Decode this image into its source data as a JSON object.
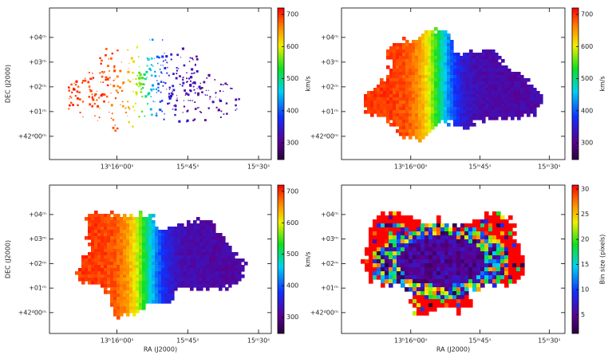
{
  "chart_data": [
    {
      "type": "velocity-map",
      "ylabel": "DEC (J2000)",
      "colorbar_label": "km/s",
      "xlim": [
        74.3,
        27.3
      ],
      "ylim": [
        -0.94,
        5.19
      ],
      "clim": [
        248,
        720
      ],
      "xticks": [
        {
          "value": 60,
          "label": "13ʰ16ᵐ00ˢ"
        },
        {
          "value": 45,
          "label": "15ᵐ45ˢ"
        },
        {
          "value": 30,
          "label": "15ᵐ30ˢ"
        }
      ],
      "yticks": [
        {
          "value": 4,
          "label": "+04ᵐ"
        },
        {
          "value": 3,
          "label": "+03ᵐ"
        },
        {
          "value": 2,
          "label": "+02ᵐ"
        },
        {
          "value": 1,
          "label": "+01ᵐ"
        },
        {
          "value": 0,
          "label": "+42ᵈ00ᵐ"
        }
      ],
      "cticks": [
        300,
        400,
        500,
        600,
        700
      ],
      "colormap": "rainbow",
      "style": "sparse"
    },
    {
      "type": "velocity-map",
      "colorbar_label": "km/s",
      "xlim": [
        75.0,
        26.6
      ],
      "ylim": [
        -0.94,
        5.19
      ],
      "clim": [
        248,
        720
      ],
      "xticks": [
        {
          "value": 60,
          "label": "13ʰ16ᵐ00ˢ"
        },
        {
          "value": 45,
          "label": "15ᵐ45ˢ"
        },
        {
          "value": 30,
          "label": "15ᵐ30ˢ"
        }
      ],
      "yticks": [
        {
          "value": 4,
          "label": "+04ᵐ"
        },
        {
          "value": 3,
          "label": "+03ᵐ"
        },
        {
          "value": 2,
          "label": "+02ᵐ"
        },
        {
          "value": 1,
          "label": "+01ᵐ"
        },
        {
          "value": 0,
          "label": "+42ᵈ00ᵐ"
        }
      ],
      "cticks": [
        300,
        400,
        500,
        600,
        700
      ],
      "colormap": "rainbow",
      "style": "smooth"
    },
    {
      "type": "velocity-map",
      "xlabel": "RA (J2000)",
      "ylabel": "DEC (J2000)",
      "colorbar_label": "km/s",
      "xlim": [
        74.3,
        27.3
      ],
      "ylim": [
        -0.85,
        5.2
      ],
      "clim": [
        248,
        720
      ],
      "xticks": [
        {
          "value": 60,
          "label": "13ʰ16ᵐ00ˢ"
        },
        {
          "value": 45,
          "label": "15ᵐ45ˢ"
        },
        {
          "value": 30,
          "label": "15ᵐ30ˢ"
        }
      ],
      "yticks": [
        {
          "value": 4,
          "label": "+04ᵐ"
        },
        {
          "value": 3,
          "label": "+03ᵐ"
        },
        {
          "value": 2,
          "label": "+02ᵐ"
        },
        {
          "value": 1,
          "label": "+01ᵐ"
        },
        {
          "value": 0,
          "label": "+42ᵈ00ᵐ"
        }
      ],
      "cticks": [
        300,
        400,
        500,
        600,
        700
      ],
      "colormap": "rainbow",
      "style": "filled"
    },
    {
      "type": "bin-map",
      "xlabel": "RA (J2000)",
      "colorbar_label": "Bin size (pixels)",
      "xlim": [
        75.0,
        26.6
      ],
      "ylim": [
        -0.85,
        5.2
      ],
      "clim": [
        1.3,
        30.8
      ],
      "xticks": [
        {
          "value": 60,
          "label": "13ʰ16ᵐ00ˢ"
        },
        {
          "value": 45,
          "label": "15ᵐ45ˢ"
        },
        {
          "value": 30,
          "label": "15ᵐ30ˢ"
        }
      ],
      "yticks": [
        {
          "value": 4,
          "label": "+04ᵐ"
        },
        {
          "value": 3,
          "label": "+03ᵐ"
        },
        {
          "value": 2,
          "label": "+02ᵐ"
        },
        {
          "value": 1,
          "label": "+01ᵐ"
        },
        {
          "value": 0,
          "label": "+42ᵈ00ᵐ"
        }
      ],
      "cticks": [
        5,
        10,
        15,
        20,
        25,
        30
      ],
      "colormap": "rainbow",
      "style": "bins"
    }
  ]
}
